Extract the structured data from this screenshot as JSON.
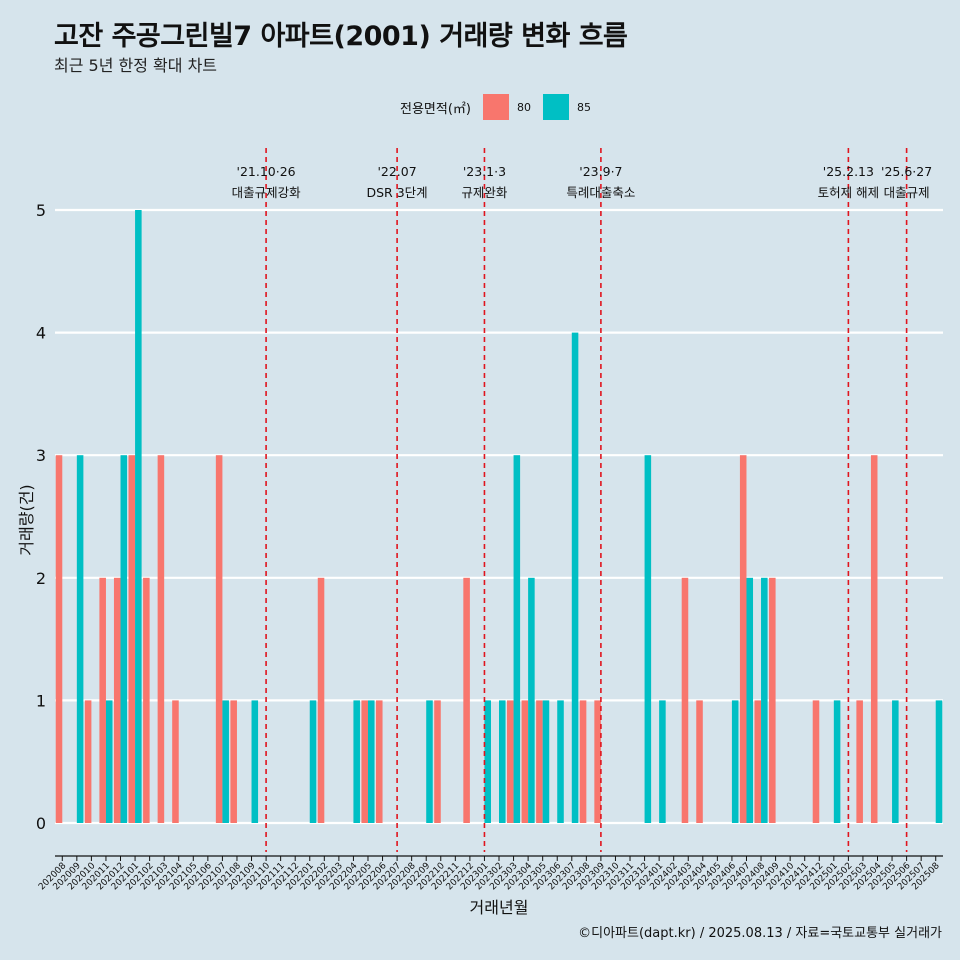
{
  "title": "고잔 주공그린빌7 아파트(2001) 거래량 변화 흐름",
  "subtitle": "최근 5년 한정 확대 차트",
  "legend": {
    "title": "전용면적(㎡)",
    "items": [
      {
        "label": "80",
        "color": "#F8766D"
      },
      {
        "label": "85",
        "color": "#00BFC4"
      }
    ]
  },
  "source": "©디아파트(dapt.kr) / 2025.08.13 / 자료=국토교통부 실거래가",
  "chart_data": {
    "type": "bar",
    "xlabel": "거래년월",
    "ylabel": "거래량(건)",
    "ylim": [
      0,
      5
    ],
    "yticks": [
      0,
      1,
      2,
      3,
      4,
      5
    ],
    "categories": [
      "202008",
      "202009",
      "202010",
      "202011",
      "202012",
      "202101",
      "202102",
      "202103",
      "202104",
      "202105",
      "202106",
      "202107",
      "202108",
      "202109",
      "202110",
      "202111",
      "202112",
      "202201",
      "202202",
      "202203",
      "202204",
      "202205",
      "202206",
      "202207",
      "202208",
      "202209",
      "202210",
      "202211",
      "202212",
      "202301",
      "202302",
      "202303",
      "202304",
      "202305",
      "202306",
      "202307",
      "202308",
      "202309",
      "202310",
      "202311",
      "202312",
      "202401",
      "202402",
      "202403",
      "202404",
      "202405",
      "202406",
      "202407",
      "202408",
      "202409",
      "202410",
      "202411",
      "202412",
      "202501",
      "202502",
      "202503",
      "202504",
      "202505",
      "202506",
      "202507",
      "202508"
    ],
    "series": [
      {
        "name": "80",
        "color": "#F8766D",
        "values": [
          3,
          0,
          1,
          2,
          2,
          3,
          2,
          3,
          1,
          0,
          0,
          3,
          1,
          0,
          0,
          0,
          0,
          0,
          2,
          0,
          0,
          1,
          1,
          0,
          0,
          0,
          1,
          0,
          2,
          0,
          0,
          1,
          1,
          1,
          0,
          0,
          1,
          1,
          0,
          0,
          0,
          0,
          0,
          2,
          1,
          0,
          0,
          3,
          1,
          2,
          0,
          0,
          1,
          0,
          0,
          1,
          3,
          0,
          0,
          0,
          0
        ]
      },
      {
        "name": "85",
        "color": "#00BFC4",
        "values": [
          0,
          3,
          0,
          1,
          3,
          5,
          0,
          0,
          0,
          0,
          0,
          1,
          0,
          1,
          0,
          0,
          0,
          1,
          0,
          0,
          1,
          1,
          0,
          0,
          0,
          1,
          0,
          0,
          0,
          1,
          1,
          3,
          2,
          1,
          1,
          4,
          0,
          0,
          0,
          0,
          3,
          1,
          0,
          0,
          0,
          0,
          1,
          2,
          2,
          0,
          0,
          0,
          0,
          1,
          0,
          0,
          0,
          1,
          0,
          0,
          1
        ]
      }
    ],
    "events": [
      {
        "date": "'21.10·26",
        "label": "대출규제강화",
        "month": "202110"
      },
      {
        "date": "'22.07",
        "label": "DSR 3단계",
        "month": "202207"
      },
      {
        "date": "'23.1·3",
        "label": "규제완화",
        "month": "202301"
      },
      {
        "date": "'23.9·7",
        "label": "특례대출축소",
        "month": "202309"
      },
      {
        "date": "'25.2.13",
        "label": "토허제 해제",
        "month": "202502"
      },
      {
        "date": "'25.6·27",
        "label": "대출규제",
        "month": "202506"
      }
    ]
  }
}
